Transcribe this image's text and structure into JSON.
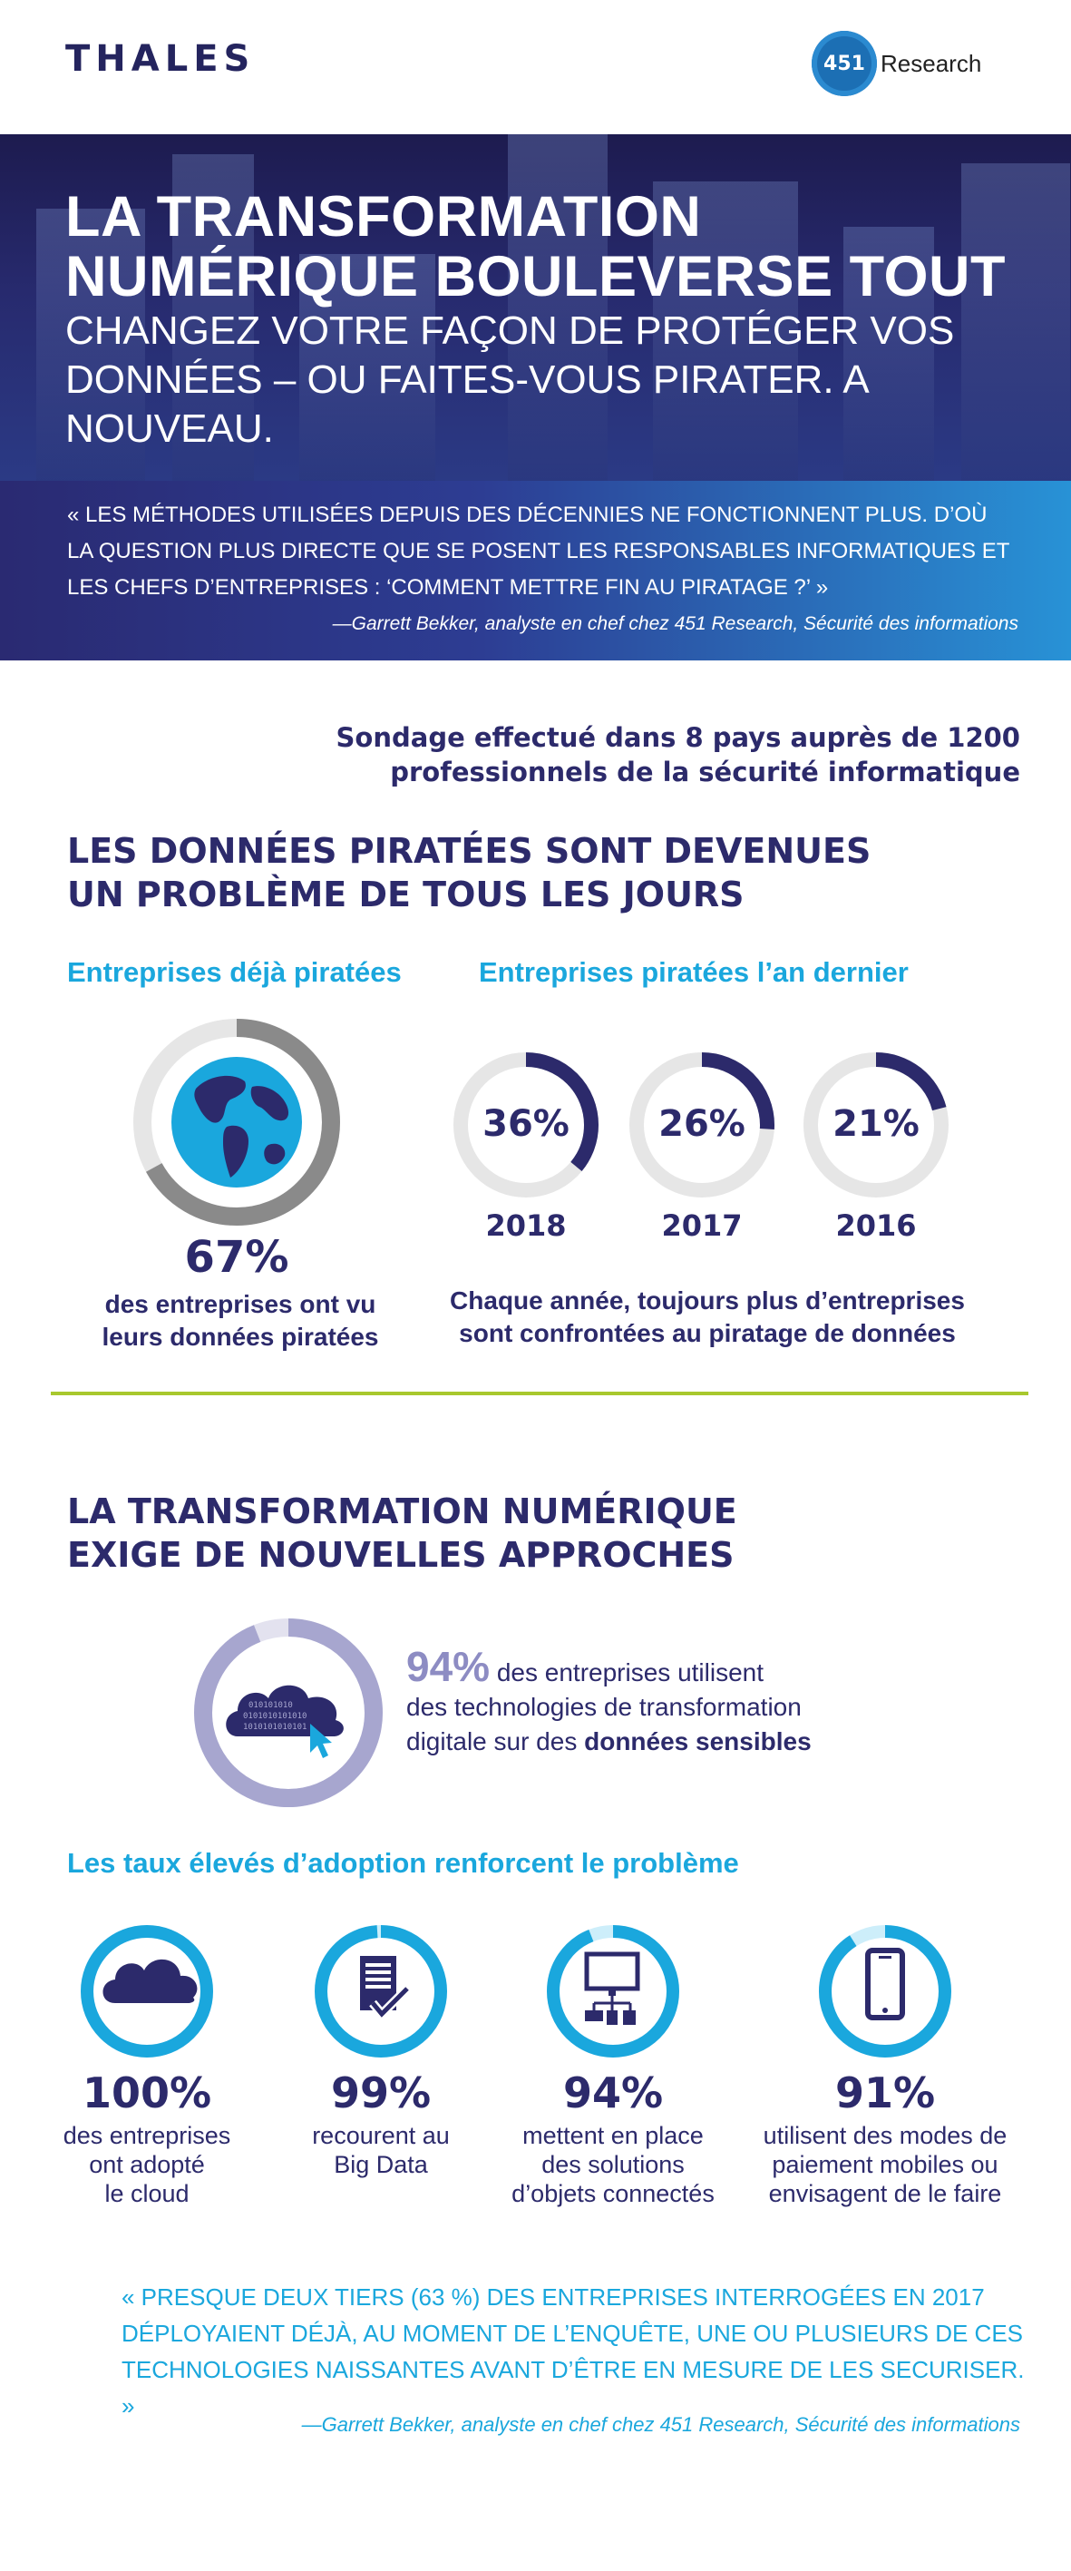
{
  "header": {
    "thales_logo": "THALES",
    "research_logo_number": "451",
    "research_logo_word": "Research"
  },
  "hero": {
    "title_line1": "LA TRANSFORMATION",
    "title_line2": "NUMÉRIQUE BOULEVERSE TOUT",
    "subtitle_line1": "CHANGEZ VOTRE FAÇON DE PROTÉGER VOS",
    "subtitle_line2": "DONNÉES – OU FAITES-VOUS PIRATER. A NOUVEAU."
  },
  "quote1": {
    "line1": "« LES MÉTHODES UTILISÉES DEPUIS DES DÉCENNIES NE FONCTIONNENT PLUS. D’OÙ",
    "line2": "LA QUESTION PLUS DIRECTE QUE SE POSENT LES RESPONSABLES INFORMATIQUES ET",
    "line3": "LES CHEFS D’ENTREPRISES : ‘COMMENT METTRE FIN AU PIRATAGE ?’ »",
    "author": "—Garrett Bekker, analyste en chef chez 451 Research, Sécurité des informations"
  },
  "survey": {
    "line1": "Sondage effectué dans 8 pays auprès de 1200",
    "line2": "professionnels de la sécurité informatique"
  },
  "section1": {
    "title_line1": "LES DONNÉES PIRATÉES SONT DEVENUES",
    "title_line2": "UN PROBLÈME DE TOUS LES JOURS",
    "left_subtitle": "Entreprises déjà piratées",
    "right_subtitle": "Entreprises piratées l’an dernier",
    "left_stat": {
      "value": 67,
      "label": "67%",
      "caption_line1": "des entreprises ont vu",
      "caption_line2": "leurs données piratées"
    },
    "years": [
      {
        "year": "2018",
        "value": 36,
        "label": "36%"
      },
      {
        "year": "2017",
        "value": 26,
        "label": "26%"
      },
      {
        "year": "2016",
        "value": 21,
        "label": "21%"
      }
    ],
    "right_caption_line1": "Chaque année, toujours plus d’entreprises",
    "right_caption_line2": "sont confrontées au piratage de données"
  },
  "section2": {
    "title_line1": "LA TRANSFORMATION NUMÉRIQUE",
    "title_line2": "EXIGE DE NOUVELLES APPROCHES",
    "main_stat": {
      "value": 94,
      "label": "94%",
      "text_part1": " des entreprises utilisent",
      "text_line2": "des technologies de transformation",
      "text_line3_part1": "digitale sur des ",
      "text_line3_bold": "données sensibles"
    },
    "adoption_subtitle": "Les taux élevés d’adoption renforcent le problème",
    "adoption": [
      {
        "icon": "cloud-icon",
        "value": 100,
        "label": "100%",
        "caption": [
          "des entreprises",
          "ont adopté",
          "le cloud"
        ]
      },
      {
        "icon": "document-check-icon",
        "value": 99,
        "label": "99%",
        "caption": [
          "recourent au",
          "Big Data"
        ]
      },
      {
        "icon": "connected-devices-icon",
        "value": 94,
        "label": "94%",
        "caption": [
          "mettent en place",
          "des solutions",
          "d’objets connectés"
        ]
      },
      {
        "icon": "smartphone-icon",
        "value": 91,
        "label": "91%",
        "caption": [
          "utilisent des modes de",
          "paiement mobiles ou",
          "envisagent de le faire"
        ]
      }
    ]
  },
  "quote2": {
    "line1": "« PRESQUE DEUX TIERS (63 %) DES ENTREPRISES INTERROGÉES EN 2017",
    "line2": "DÉPLOYAIENT DÉJÀ, AU MOMENT DE L’ENQUÊTE, UNE OU PLUSIEURS DE CES",
    "line3": "TECHNOLOGIES NAISSANTES AVANT D’ÊTRE EN MESURE DE LES SECURISER. »",
    "author": "—Garrett Bekker, analyste en chef chez 451 Research, Sécurité des informations"
  },
  "colors": {
    "navy": "#2c2a6b",
    "cyan": "#1aa7dd",
    "lime": "#a8c82e",
    "ring_gray": "#e6e6e6",
    "ring_dark_gray": "#8a8a8a",
    "lavender": "#a7a6cf"
  }
}
